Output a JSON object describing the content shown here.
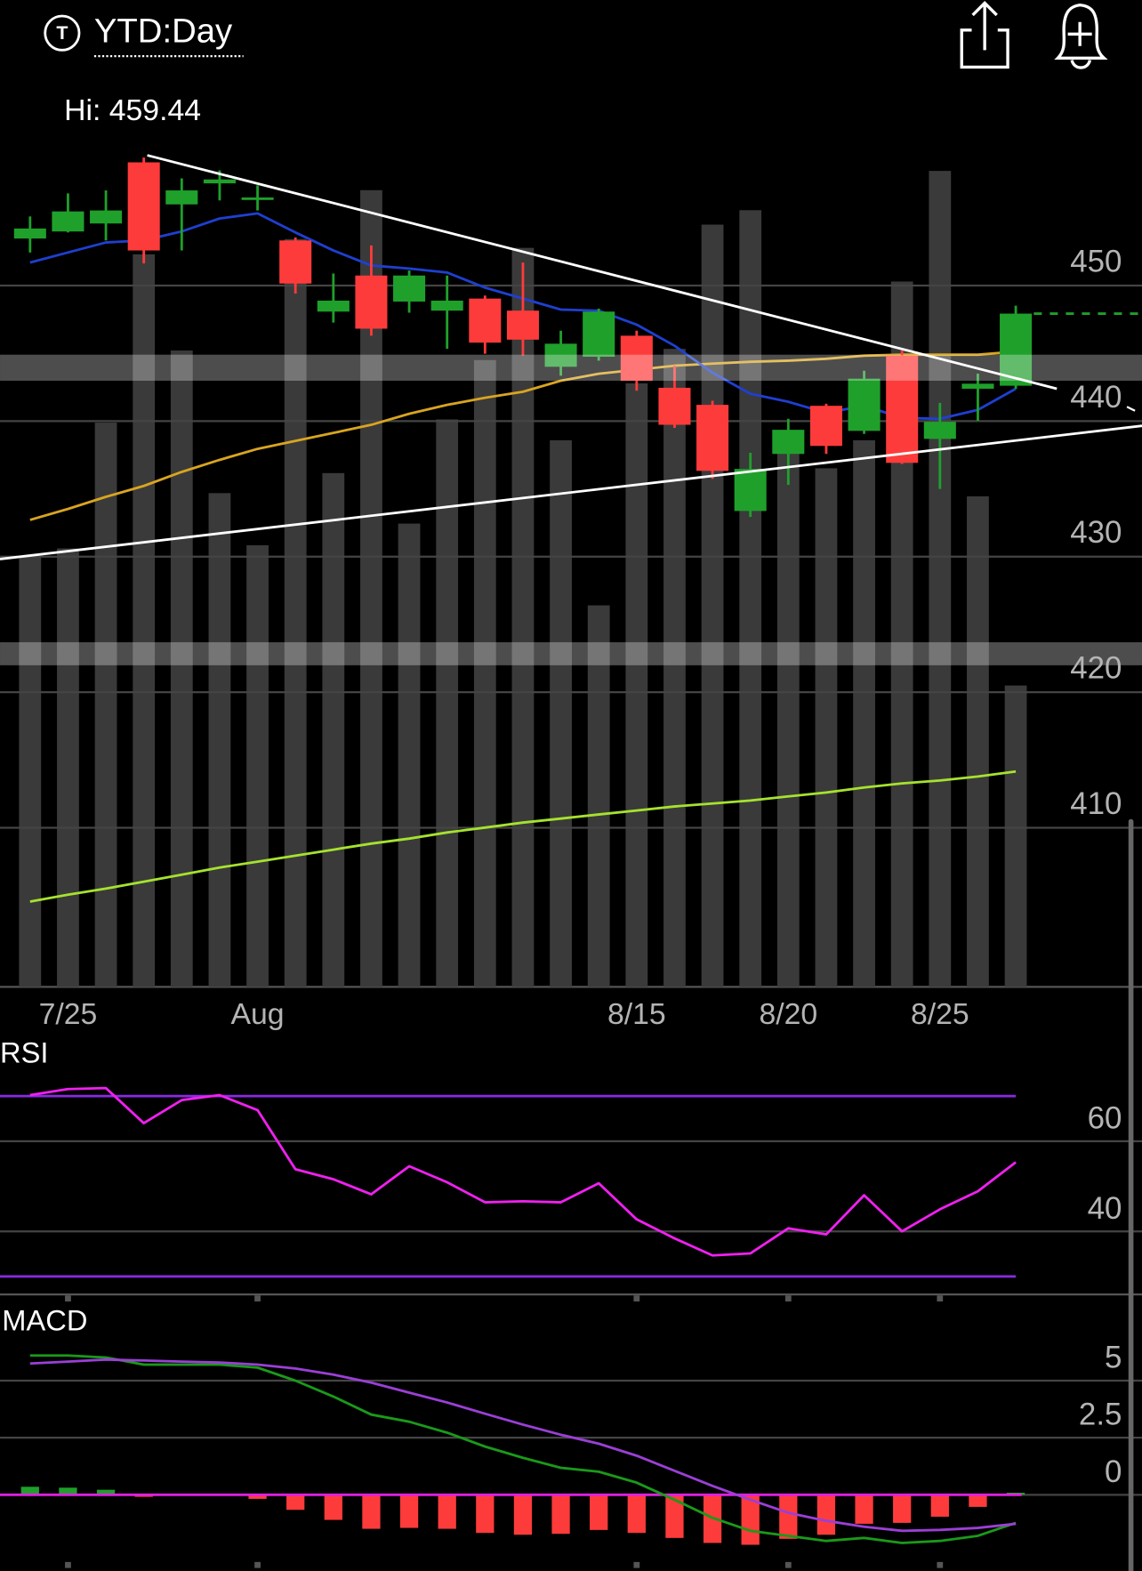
{
  "header": {
    "range": "YTD:Day",
    "high_label": "Hi: 459.44"
  },
  "chart_data": [
    {
      "type": "candlestick",
      "categories": [
        null,
        "7/25",
        null,
        null,
        null,
        null,
        "Aug",
        null,
        null,
        null,
        null,
        null,
        null,
        null,
        null,
        null,
        "8/15",
        null,
        null,
        null,
        "8/20",
        null,
        null,
        null,
        "8/25",
        null,
        null
      ],
      "open": [
        453.47,
        453.99,
        454.58,
        459.09,
        455.99,
        457.54,
        456.36,
        453.33,
        448.08,
        450.74,
        448.82,
        448.15,
        449.04,
        448.15,
        444.01,
        444.75,
        446.3,
        442.46,
        441.2,
        433.37,
        437.58,
        441.13,
        439.28,
        444.83,
        438.69,
        442.39,
        442.61
      ],
      "high": [
        455.1,
        456.8,
        457.02,
        459.44,
        457.91,
        458.5,
        457.39,
        453.55,
        450.89,
        452.96,
        451.11,
        450.74,
        449.26,
        451.7,
        446.67,
        448.3,
        446.67,
        444.09,
        441.5,
        437.66,
        440.17,
        441.28,
        443.72,
        445.2,
        441.35,
        443.5,
        448.52
      ],
      "low": [
        452.44,
        453.92,
        453.33,
        451.63,
        452.59,
        456.28,
        455.54,
        449.41,
        447.27,
        446.3,
        448.0,
        445.34,
        444.97,
        444.83,
        443.35,
        444.46,
        442.24,
        439.5,
        435.74,
        432.93,
        435.29,
        437.58,
        439.06,
        436.84,
        435.0,
        440.02,
        442.39
      ],
      "close": [
        454.21,
        455.47,
        455.54,
        452.59,
        457.02,
        457.83,
        456.5,
        450.15,
        448.89,
        446.82,
        450.74,
        448.89,
        445.79,
        446.01,
        445.71,
        448.08,
        442.98,
        439.73,
        436.33,
        436.47,
        439.36,
        438.17,
        443.13,
        436.92,
        439.95,
        442.76,
        447.93
      ],
      "up_color": "#1fa02b",
      "down_color": "#fe3b3b",
      "ylim": [
        398.26,
        460.35
      ],
      "yticks": [
        410,
        420,
        430,
        440,
        450
      ],
      "grid": true,
      "volume": [
        53.7,
        54.7,
        70.4,
        91.4,
        79.4,
        61.6,
        55.1,
        93.3,
        64.1,
        99.4,
        57.8,
        70.8,
        78.2,
        92.2,
        68.2,
        47.6,
        75.3,
        79.6,
        95.1,
        96.9,
        68.2,
        64.7,
        68.2,
        88.0,
        101.8,
        61.2,
        37.6
      ],
      "volume_ylim": [
        0,
        105
      ],
      "volume_color": "#3a3a3a",
      "overlays": [
        {
          "color": "#d9a520",
          "values": [
            432.71,
            433.52,
            434.41,
            435.22,
            436.25,
            437.14,
            437.95,
            438.54,
            439.13,
            439.73,
            440.54,
            441.2,
            441.72,
            442.17,
            442.98,
            443.5,
            443.79,
            444.09,
            444.24,
            444.38,
            444.46,
            444.6,
            444.83,
            444.9,
            444.9,
            444.9,
            445.12
          ]
        },
        {
          "color": "#a6e22e",
          "values": [
            404.55,
            405.06,
            405.51,
            406.02,
            406.54,
            407.06,
            407.5,
            407.94,
            408.39,
            408.83,
            409.2,
            409.65,
            410.01,
            410.38,
            410.68,
            410.98,
            411.27,
            411.57,
            411.79,
            412.01,
            412.31,
            412.6,
            412.97,
            413.27,
            413.49,
            413.78,
            414.15
          ]
        },
        {
          "color": "#1f3fd0",
          "values": [
            451.7,
            452.44,
            453.18,
            453.33,
            453.99,
            454.95,
            455.32,
            453.92,
            452.59,
            451.48,
            451.26,
            450.96,
            449.85,
            449.04,
            448.23,
            448.15,
            447.12,
            445.56,
            443.57,
            442.02,
            441.43,
            440.61,
            441.13,
            440.24,
            440.17,
            440.83,
            442.39
          ]
        }
      ],
      "last_price_line": true
    },
    {
      "type": "line",
      "title": "RSI",
      "ylim": [
        26,
        82
      ],
      "yticks": [
        40,
        60
      ],
      "grid": true,
      "levels": [
        70,
        30
      ],
      "level_color": "#8a2be2",
      "color": "#f020f0",
      "values": [
        70.22,
        71.56,
        71.78,
        64.0,
        69.11,
        70.22,
        66.89,
        53.78,
        51.56,
        48.22,
        54.44,
        50.89,
        46.44,
        46.67,
        46.44,
        50.67,
        42.67,
        38.44,
        34.67,
        35.11,
        40.67,
        39.33,
        48.0,
        40.0,
        44.89,
        48.89,
        55.33
      ]
    },
    {
      "type": "macd",
      "title": "MACD",
      "ylim": [
        -3.25,
        8.42
      ],
      "yticks": [
        0,
        2.5,
        5
      ],
      "grid": true,
      "zero_color": "#e020e0",
      "series": [
        {
          "color": "#1a9a1a",
          "values": [
            6.1,
            6.1,
            6.01,
            5.7,
            5.7,
            5.7,
            5.57,
            5.0,
            4.3,
            3.51,
            3.2,
            2.72,
            2.11,
            1.62,
            1.18,
            1.01,
            0.53,
            -0.22,
            -1.01,
            -1.58,
            -1.8,
            -2.02,
            -1.89,
            -2.11,
            -2.02,
            -1.8,
            -1.23
          ]
        },
        {
          "color": "#9b3fd6",
          "values": [
            5.75,
            5.83,
            5.92,
            5.88,
            5.83,
            5.79,
            5.7,
            5.53,
            5.26,
            4.91,
            4.47,
            4.04,
            3.55,
            3.07,
            2.63,
            2.24,
            1.71,
            1.05,
            0.39,
            -0.22,
            -0.79,
            -1.14,
            -1.4,
            -1.58,
            -1.54,
            -1.45,
            -1.27
          ]
        }
      ],
      "histogram": [
        0.35,
        0.31,
        0.22,
        -0.09,
        -0.04,
        0.0,
        -0.18,
        -0.66,
        -1.1,
        -1.49,
        -1.45,
        -1.49,
        -1.67,
        -1.75,
        -1.71,
        -1.54,
        -1.67,
        -1.89,
        -2.11,
        -2.19,
        -1.93,
        -1.75,
        -1.27,
        -1.23,
        -0.96,
        -0.53,
        0.09
      ],
      "up_color": "#1fa02b",
      "down_color": "#fe3b3b"
    }
  ]
}
